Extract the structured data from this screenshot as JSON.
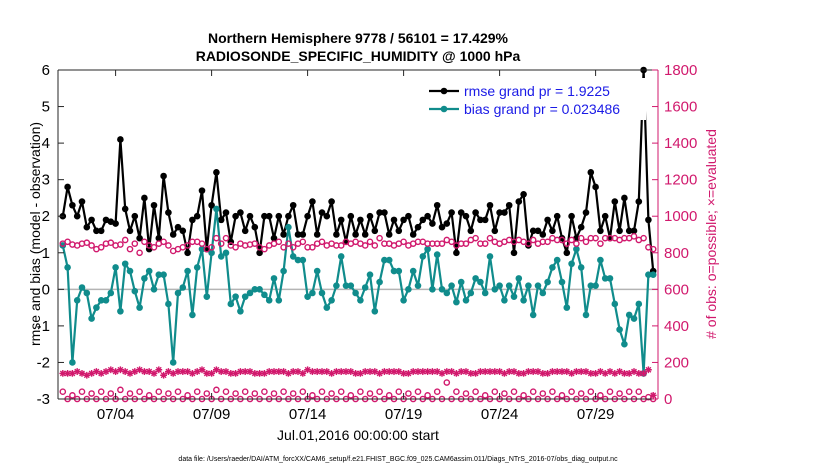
{
  "chart_data": {
    "type": "line",
    "title": [
      "Northern Hemisphere 9778 / 56101 = 17.429%",
      "RADIOSONDE_SPECIFIC_HUMIDITY @ 1000 hPa"
    ],
    "xlabel": "Jul.01,2016 00:00:00 start",
    "ylabel_left": "rmse and bias (model - observation)",
    "ylabel_right": "# of obs: o=possible; ×=evaluated",
    "ylim_left": [
      -3,
      6
    ],
    "ylim_right": [
      0,
      1800
    ],
    "yticks_left": [
      "-3",
      "-2",
      "-1",
      "0",
      "1",
      "2",
      "3",
      "4",
      "5",
      "6"
    ],
    "yticks_right": [
      "0",
      "200",
      "400",
      "600",
      "800",
      "1000",
      "1200",
      "1400",
      "1600",
      "1800"
    ],
    "xlim": [
      0,
      125
    ],
    "x_tick_positions": [
      12,
      32,
      52,
      72,
      92,
      112
    ],
    "x_tick_labels": [
      "07/04",
      "07/09",
      "07/14",
      "07/19",
      "07/24",
      "07/29"
    ],
    "grid": false,
    "legend": [
      {
        "label": "rmse grand pr = 1.9225",
        "color": "#000000"
      },
      {
        "label": "bias grand pr = 0.023486",
        "color": "#108c8c"
      }
    ],
    "legend_loc": "top-right",
    "series": [
      {
        "name": "rmse",
        "axis": "left",
        "color": "#000000",
        "values": [
          2.0,
          2.8,
          2.3,
          2.0,
          2.4,
          1.7,
          1.9,
          1.6,
          1.6,
          1.9,
          1.85,
          1.8,
          4.1,
          2.2,
          1.6,
          2.0,
          1.4,
          2.5,
          1.1,
          2.3,
          1.4,
          3.1,
          2.1,
          1.5,
          1.7,
          1.6,
          1.0,
          1.9,
          2.0,
          2.7,
          1.1,
          2.3,
          3.2,
          1.9,
          2.1,
          1.3,
          2.0,
          2.1,
          1.6,
          2.0,
          1.7,
          1.0,
          2.0,
          2.0,
          1.4,
          2.0,
          1.5,
          2.0,
          2.3,
          1.5,
          1.5,
          2.0,
          2.4,
          1.5,
          2.1,
          2.0,
          2.4,
          1.5,
          1.9,
          1.3,
          2.0,
          1.5,
          1.9,
          1.5,
          2.0,
          1.6,
          2.1,
          2.1,
          1.5,
          1.9,
          1.6,
          1.9,
          2.0,
          1.5,
          1.7,
          1.9,
          2.0,
          1.8,
          2.3,
          1.7,
          1.8,
          2.1,
          1.0,
          2.1,
          2.0,
          1.6,
          2.1,
          1.9,
          1.9,
          2.3,
          1.6,
          2.1,
          2.1,
          2.3,
          1.0,
          2.4,
          2.6,
          1.2,
          1.6,
          1.6,
          1.5,
          1.9,
          1.6,
          2.0,
          1.4,
          1.0,
          2.0,
          1.4,
          1.7,
          2.1,
          3.2,
          2.8,
          1.6,
          2.0,
          1.4,
          2.4,
          1.6,
          2.5,
          1.6,
          1.6,
          2.4,
          6.0,
          1.9,
          0.5
        ]
      },
      {
        "name": "bias",
        "axis": "left",
        "color": "#108c8c",
        "values": [
          1.2,
          0.6,
          -2.0,
          -0.3,
          0.05,
          -0.1,
          -0.8,
          -0.5,
          -0.3,
          -0.3,
          -0.1,
          0.6,
          -0.6,
          0.7,
          0.5,
          -0.05,
          -0.5,
          0.3,
          0.5,
          0.0,
          0.4,
          0.4,
          -0.4,
          -2.0,
          -0.1,
          0.05,
          0.5,
          -0.7,
          0.6,
          1.1,
          -0.2,
          1.0,
          2.2,
          0.9,
          1.0,
          -0.4,
          -0.2,
          -0.6,
          -0.2,
          -0.1,
          0.0,
          0.0,
          -0.15,
          -0.3,
          0.3,
          -0.3,
          0.5,
          1.7,
          0.9,
          0.8,
          0.8,
          -0.2,
          -0.1,
          0.5,
          -0.1,
          -0.5,
          -0.3,
          0.1,
          0.9,
          0.1,
          0.1,
          -0.1,
          -0.3,
          0.05,
          0.4,
          -0.6,
          0.2,
          0.8,
          0.8,
          0.5,
          0.5,
          -0.3,
          0.0,
          0.5,
          0.1,
          0.9,
          1.1,
          0.0,
          0.95,
          0.0,
          -0.1,
          0.1,
          -0.35,
          0.2,
          -0.3,
          -0.1,
          0.3,
          0.2,
          -0.1,
          0.9,
          0.0,
          0.1,
          -0.3,
          0.1,
          -0.2,
          0.3,
          -0.3,
          0.1,
          -0.7,
          0.1,
          -0.1,
          0.2,
          0.6,
          0.8,
          0.2,
          -0.5,
          0.7,
          1.1,
          0.6,
          -0.7,
          0.1,
          0.1,
          0.8,
          0.3,
          0.3,
          -0.4,
          -1.1,
          -1.5,
          -0.7,
          -0.8,
          -0.4,
          -2.3,
          0.4,
          0.4
        ]
      },
      {
        "name": "possible",
        "axis": "right",
        "color": "#d1196d",
        "marker": "o",
        "values": [
          850,
          860,
          845,
          840,
          850,
          855,
          840,
          820,
          830,
          850,
          855,
          840,
          845,
          870,
          820,
          850,
          800,
          860,
          840,
          830,
          850,
          860,
          840,
          810,
          820,
          830,
          840,
          860,
          860,
          850,
          820,
          830,
          880,
          850,
          880,
          840,
          830,
          850,
          840,
          845,
          850,
          830,
          820,
          840,
          850,
          860,
          830,
          850,
          830,
          850,
          860,
          830,
          830,
          850,
          860,
          840,
          850,
          840,
          840,
          860,
          850,
          860,
          850,
          840,
          860,
          840,
          880,
          850,
          850,
          840,
          850,
          860,
          840,
          850,
          860,
          860,
          850,
          850,
          850,
          850,
          870,
          860,
          840,
          850,
          850,
          870,
          880,
          850,
          850,
          880,
          860,
          850,
          860,
          870,
          860,
          870,
          860,
          850,
          870,
          850,
          860,
          860,
          880,
          870,
          870,
          850,
          870,
          850,
          880,
          860,
          880,
          880,
          850,
          880,
          880,
          880,
          870,
          880,
          880,
          890,
          870,
          880,
          830,
          820
        ]
      },
      {
        "name": "evaluated",
        "axis": "right",
        "color": "#d1196d",
        "marker": "*",
        "values": [
          140,
          140,
          140,
          150,
          140,
          130,
          140,
          150,
          140,
          150,
          160,
          150,
          160,
          150,
          140,
          150,
          160,
          150,
          150,
          140,
          160,
          130,
          150,
          140,
          150,
          150,
          150,
          140,
          150,
          160,
          140,
          140,
          160,
          150,
          150,
          140,
          140,
          150,
          150,
          150,
          140,
          140,
          140,
          150,
          150,
          150,
          150,
          140,
          150,
          150,
          140,
          160,
          150,
          150,
          150,
          150,
          140,
          150,
          150,
          150,
          150,
          140,
          140,
          150,
          150,
          150,
          140,
          150,
          150,
          150,
          150,
          140,
          140,
          150,
          150,
          150,
          150,
          150,
          150,
          140,
          150,
          150,
          140,
          150,
          150,
          140,
          140,
          150,
          150,
          150,
          150,
          150,
          140,
          150,
          150,
          140,
          140,
          150,
          150,
          150,
          140,
          140,
          150,
          150,
          150,
          150,
          140,
          150,
          150,
          150,
          140,
          140,
          150,
          140,
          150,
          140,
          150,
          140,
          140,
          150,
          140,
          140,
          160,
          20
        ]
      },
      {
        "name": "possible-low",
        "axis": "right",
        "color": "#d1196d",
        "marker": "o",
        "values": [
          40,
          0,
          20,
          0,
          40,
          0,
          30,
          0,
          40,
          0,
          30,
          0,
          50,
          0,
          30,
          0,
          40,
          0,
          20,
          0,
          40,
          0,
          30,
          0,
          40,
          0,
          20,
          0,
          40,
          0,
          30,
          0,
          50,
          0,
          40,
          0,
          30,
          0,
          40,
          0,
          30,
          0,
          40,
          0,
          30,
          0,
          40,
          0,
          30,
          0,
          40,
          0,
          20,
          0,
          40,
          0,
          30,
          0,
          40,
          0,
          20,
          0,
          40,
          0,
          30,
          0,
          40,
          0,
          20,
          0,
          40,
          0,
          30,
          0,
          40,
          0,
          20,
          0,
          40,
          0,
          90,
          0,
          40,
          0,
          30,
          0,
          40,
          0,
          20,
          0,
          40,
          0,
          30,
          0,
          40,
          0,
          20,
          0,
          40,
          0,
          30,
          0,
          40,
          0,
          20,
          0,
          40,
          0,
          30,
          0,
          40,
          0,
          20,
          0,
          40,
          0,
          30,
          0,
          40,
          0,
          40,
          0,
          10,
          0
        ]
      }
    ]
  },
  "footer_note": "data file: /Users/raeder/DAI/ATM_forcXX/CAM6_setup/f.e21.FHIST_BGC.f09_025.CAM6assim.011/Diags_NTrS_2016-07/obs_diag_output.nc"
}
